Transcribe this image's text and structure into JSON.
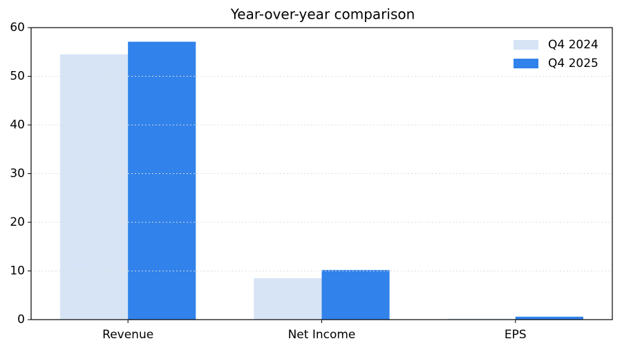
{
  "chart_data": {
    "type": "bar",
    "title": "Year-over-year comparison",
    "categories": [
      "Revenue",
      "Net Income",
      "EPS"
    ],
    "series": [
      {
        "name": "Q4 2024",
        "color": "#d6e4f5",
        "values": [
          54.5,
          8.5,
          0.2
        ]
      },
      {
        "name": "Q4 2025",
        "color": "#3182eb",
        "values": [
          57.1,
          10.2,
          0.6
        ]
      }
    ],
    "ylim": [
      0,
      60
    ],
    "yticks": [
      0,
      10,
      20,
      30,
      40,
      50,
      60
    ],
    "grid": true,
    "legend": "upper right"
  }
}
